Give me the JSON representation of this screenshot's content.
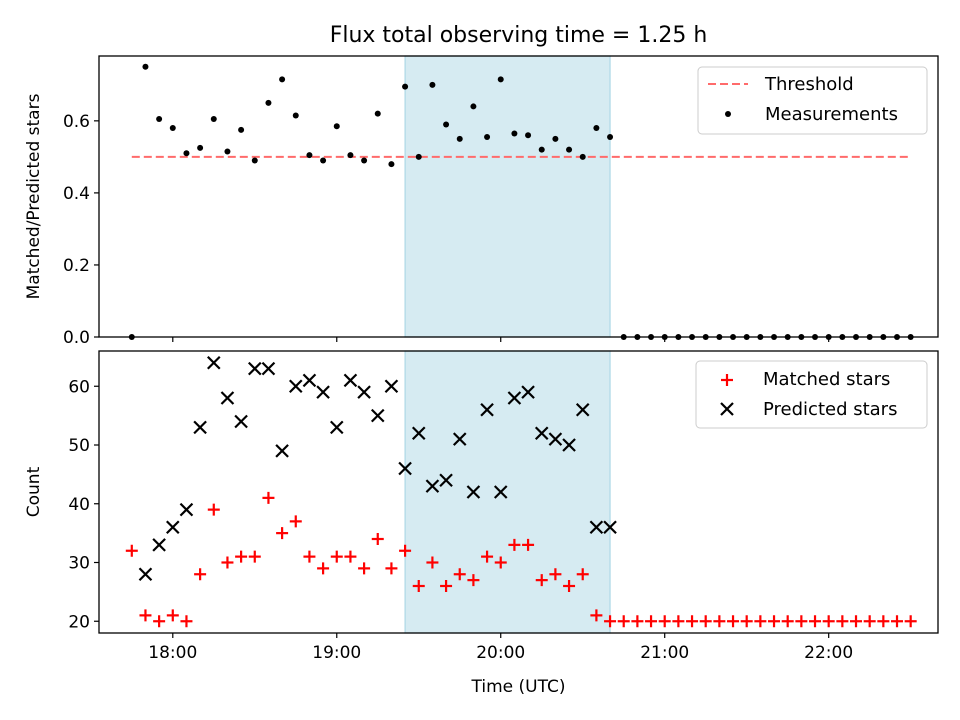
{
  "title": "Flux total observing time = 1.25 h",
  "colors": {
    "threshold": "#ff6b6b",
    "measurement": "#000000",
    "matched": "#ff0000",
    "predicted": "#000000",
    "span": "#add8e6"
  },
  "chart_data": [
    {
      "type": "scatter",
      "ylabel": "Matched/Predicted stars",
      "xlim": [
        "17:33",
        "22:40"
      ],
      "ylim": [
        0,
        0.78
      ],
      "yticks": [
        "0.0",
        "0.2",
        "0.4",
        "0.6"
      ],
      "ytick_values": [
        0,
        0.2,
        0.4,
        0.6
      ],
      "xtick_values": [
        "18:00",
        "19:00",
        "20:00",
        "21:00",
        "22:00"
      ],
      "highlight_span": [
        "19:25",
        "20:40"
      ],
      "legend": {
        "position": "upper right",
        "entries": [
          "Threshold",
          "Measurements"
        ]
      },
      "threshold": {
        "name": "Threshold",
        "x": [
          "17:45",
          "22:30"
        ],
        "y": 0.5
      },
      "series": [
        {
          "name": "Measurements",
          "points": [
            [
              "17:45",
              0.0
            ],
            [
              "17:50",
              0.75
            ],
            [
              "17:55",
              0.605
            ],
            [
              "18:00",
              0.58
            ],
            [
              "18:05",
              0.51
            ],
            [
              "18:10",
              0.525
            ],
            [
              "18:15",
              0.605
            ],
            [
              "18:20",
              0.515
            ],
            [
              "18:25",
              0.575
            ],
            [
              "18:30",
              0.49
            ],
            [
              "18:35",
              0.65
            ],
            [
              "18:40",
              0.715
            ],
            [
              "18:45",
              0.615
            ],
            [
              "18:50",
              0.505
            ],
            [
              "18:55",
              0.49
            ],
            [
              "19:00",
              0.585
            ],
            [
              "19:05",
              0.505
            ],
            [
              "19:10",
              0.49
            ],
            [
              "19:15",
              0.62
            ],
            [
              "19:20",
              0.48
            ],
            [
              "19:25",
              0.695
            ],
            [
              "19:30",
              0.5
            ],
            [
              "19:35",
              0.7
            ],
            [
              "19:40",
              0.59
            ],
            [
              "19:45",
              0.55
            ],
            [
              "19:50",
              0.64
            ],
            [
              "19:55",
              0.555
            ],
            [
              "20:00",
              0.715
            ],
            [
              "20:05",
              0.565
            ],
            [
              "20:10",
              0.56
            ],
            [
              "20:15",
              0.52
            ],
            [
              "20:20",
              0.55
            ],
            [
              "20:25",
              0.52
            ],
            [
              "20:30",
              0.5
            ],
            [
              "20:35",
              0.58
            ],
            [
              "20:40",
              0.555
            ],
            [
              "20:45",
              0.0
            ],
            [
              "20:50",
              0.0
            ],
            [
              "20:55",
              0.0
            ],
            [
              "21:00",
              0.0
            ],
            [
              "21:05",
              0.0
            ],
            [
              "21:10",
              0.0
            ],
            [
              "21:15",
              0.0
            ],
            [
              "21:20",
              0.0
            ],
            [
              "21:25",
              0.0
            ],
            [
              "21:30",
              0.0
            ],
            [
              "21:35",
              0.0
            ],
            [
              "21:40",
              0.0
            ],
            [
              "21:45",
              0.0
            ],
            [
              "21:50",
              0.0
            ],
            [
              "21:55",
              0.0
            ],
            [
              "22:00",
              0.0
            ],
            [
              "22:05",
              0.0
            ],
            [
              "22:10",
              0.0
            ],
            [
              "22:15",
              0.0
            ],
            [
              "22:20",
              0.0
            ],
            [
              "22:25",
              0.0
            ],
            [
              "22:30",
              0.0
            ]
          ]
        }
      ]
    },
    {
      "type": "scatter",
      "xlabel": "Time (UTC)",
      "ylabel": "Count",
      "xlim": [
        "17:33",
        "22:40"
      ],
      "ylim": [
        18,
        66
      ],
      "yticks": [
        "20",
        "30",
        "40",
        "50",
        "60"
      ],
      "ytick_values": [
        20,
        30,
        40,
        50,
        60
      ],
      "xticks": [
        "18:00",
        "19:00",
        "20:00",
        "21:00",
        "22:00"
      ],
      "highlight_span": [
        "19:25",
        "20:40"
      ],
      "legend": {
        "position": "upper right",
        "entries": [
          "Matched stars",
          "Predicted stars"
        ]
      },
      "series": [
        {
          "name": "Matched stars",
          "marker": "plus",
          "points": [
            [
              "17:45",
              32
            ],
            [
              "17:50",
              21
            ],
            [
              "17:55",
              20
            ],
            [
              "18:00",
              21
            ],
            [
              "18:05",
              20
            ],
            [
              "18:10",
              28
            ],
            [
              "18:15",
              39
            ],
            [
              "18:20",
              30
            ],
            [
              "18:25",
              31
            ],
            [
              "18:30",
              31
            ],
            [
              "18:35",
              41
            ],
            [
              "18:40",
              35
            ],
            [
              "18:45",
              37
            ],
            [
              "18:50",
              31
            ],
            [
              "18:55",
              29
            ],
            [
              "19:00",
              31
            ],
            [
              "19:05",
              31
            ],
            [
              "19:10",
              29
            ],
            [
              "19:15",
              34
            ],
            [
              "19:20",
              29
            ],
            [
              "19:25",
              32
            ],
            [
              "19:30",
              26
            ],
            [
              "19:35",
              30
            ],
            [
              "19:40",
              26
            ],
            [
              "19:45",
              28
            ],
            [
              "19:50",
              27
            ],
            [
              "19:55",
              31
            ],
            [
              "20:00",
              30
            ],
            [
              "20:05",
              33
            ],
            [
              "20:10",
              33
            ],
            [
              "20:15",
              27
            ],
            [
              "20:20",
              28
            ],
            [
              "20:25",
              26
            ],
            [
              "20:30",
              28
            ],
            [
              "20:35",
              21
            ],
            [
              "20:40",
              20
            ],
            [
              "20:45",
              20
            ],
            [
              "20:50",
              20
            ],
            [
              "20:55",
              20
            ],
            [
              "21:00",
              20
            ],
            [
              "21:05",
              20
            ],
            [
              "21:10",
              20
            ],
            [
              "21:15",
              20
            ],
            [
              "21:20",
              20
            ],
            [
              "21:25",
              20
            ],
            [
              "21:30",
              20
            ],
            [
              "21:35",
              20
            ],
            [
              "21:40",
              20
            ],
            [
              "21:45",
              20
            ],
            [
              "21:50",
              20
            ],
            [
              "21:55",
              20
            ],
            [
              "22:00",
              20
            ],
            [
              "22:05",
              20
            ],
            [
              "22:10",
              20
            ],
            [
              "22:15",
              20
            ],
            [
              "22:20",
              20
            ],
            [
              "22:25",
              20
            ],
            [
              "22:30",
              20
            ]
          ]
        },
        {
          "name": "Predicted stars",
          "marker": "x",
          "points": [
            [
              "17:50",
              28
            ],
            [
              "17:55",
              33
            ],
            [
              "18:00",
              36
            ],
            [
              "18:05",
              39
            ],
            [
              "18:10",
              53
            ],
            [
              "18:15",
              64
            ],
            [
              "18:20",
              58
            ],
            [
              "18:25",
              54
            ],
            [
              "18:30",
              63
            ],
            [
              "18:35",
              63
            ],
            [
              "18:40",
              49
            ],
            [
              "18:45",
              60
            ],
            [
              "18:50",
              61
            ],
            [
              "18:55",
              59
            ],
            [
              "19:00",
              53
            ],
            [
              "19:05",
              61
            ],
            [
              "19:10",
              59
            ],
            [
              "19:15",
              55
            ],
            [
              "19:20",
              60
            ],
            [
              "19:25",
              46
            ],
            [
              "19:30",
              52
            ],
            [
              "19:35",
              43
            ],
            [
              "19:40",
              44
            ],
            [
              "19:45",
              51
            ],
            [
              "19:50",
              42
            ],
            [
              "19:55",
              56
            ],
            [
              "20:00",
              42
            ],
            [
              "20:05",
              58
            ],
            [
              "20:10",
              59
            ],
            [
              "20:15",
              52
            ],
            [
              "20:20",
              51
            ],
            [
              "20:25",
              50
            ],
            [
              "20:30",
              56
            ],
            [
              "20:35",
              36
            ],
            [
              "20:40",
              36
            ]
          ]
        }
      ]
    }
  ]
}
